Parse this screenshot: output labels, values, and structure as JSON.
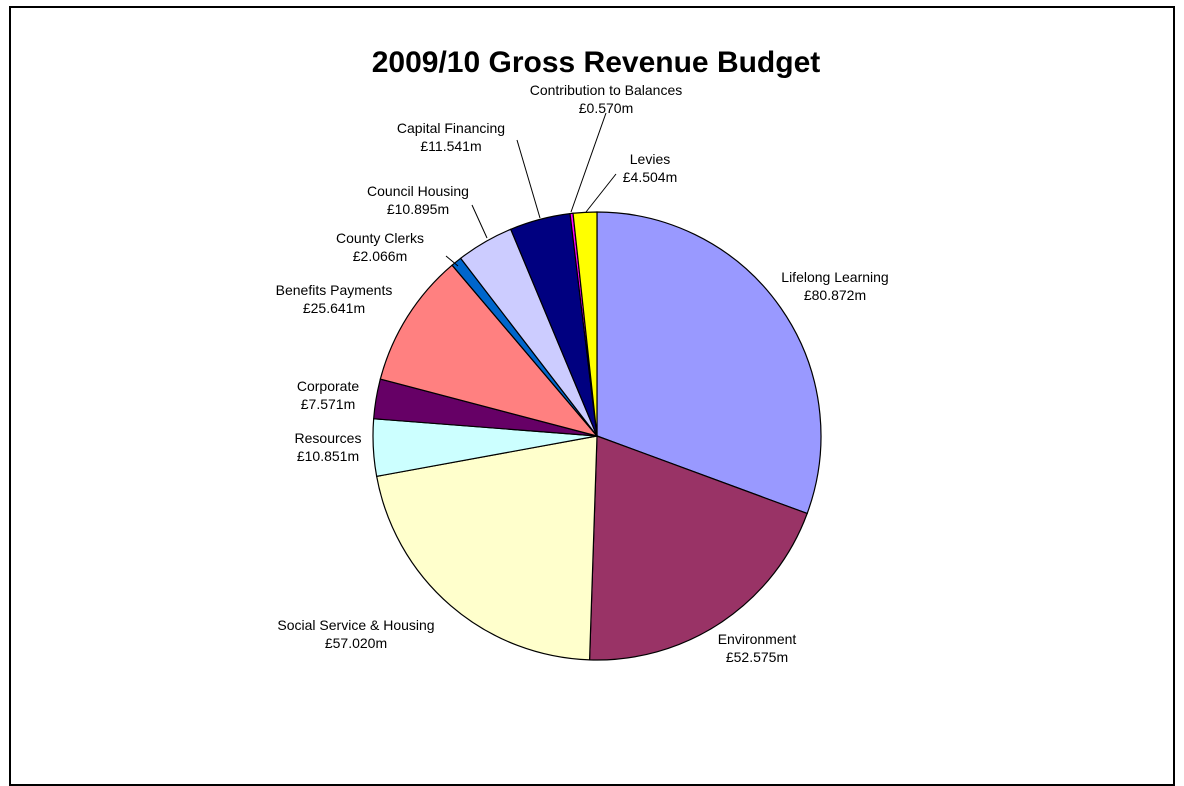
{
  "chart_data": {
    "type": "pie",
    "title": "2009/10 Gross Revenue Budget",
    "unit": "£m",
    "slices": [
      {
        "name": "Lifelong Learning",
        "value": 80.872,
        "display": "£80.872m",
        "color": "#9999ff"
      },
      {
        "name": "Environment",
        "value": 52.575,
        "display": "£52.575m",
        "color": "#993366"
      },
      {
        "name": "Social Service & Housing",
        "value": 57.02,
        "display": "£57.020m",
        "color": "#ffffcc"
      },
      {
        "name": "Resources",
        "value": 10.851,
        "display": "£10.851m",
        "color": "#ccffff"
      },
      {
        "name": "Corporate",
        "value": 7.571,
        "display": "£7.571m",
        "color": "#660066"
      },
      {
        "name": "Benefits Payments",
        "value": 25.641,
        "display": "£25.641m",
        "color": "#ff8080"
      },
      {
        "name": "County Clerks",
        "value": 2.066,
        "display": "£2.066m",
        "color": "#0066cc"
      },
      {
        "name": "Council Housing",
        "value": 10.895,
        "display": "£10.895m",
        "color": "#ccccff"
      },
      {
        "name": "Capital Financing",
        "value": 11.541,
        "display": "£11.541m",
        "color": "#000080"
      },
      {
        "name": "Contribution to Balances",
        "value": 0.57,
        "display": "£0.570m",
        "color": "#ff00ff"
      },
      {
        "name": "Levies",
        "value": 4.504,
        "display": "£4.504m",
        "color": "#ffff00"
      }
    ]
  }
}
